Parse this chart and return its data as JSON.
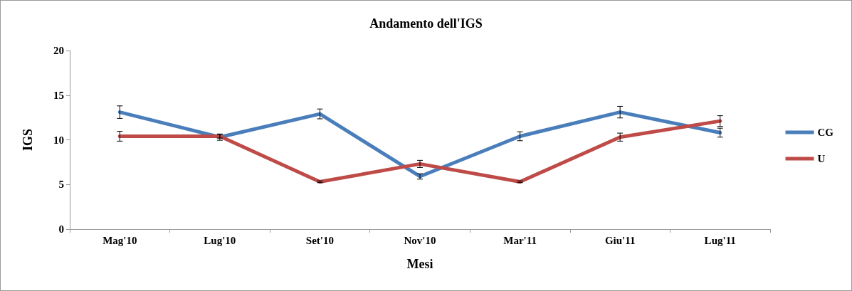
{
  "chart_data": {
    "type": "line",
    "title": "Andamento dell'IGS",
    "xlabel": "Mesi",
    "ylabel": "IGS",
    "categories": [
      "Mag'10",
      "Lug'10",
      "Set'10",
      "Nov'10",
      "Mar'11",
      "Giu'11",
      "Lug'11"
    ],
    "series": [
      {
        "name": "CG",
        "color": "#4a7ebb",
        "values": [
          13.1,
          10.3,
          12.9,
          5.9,
          10.4,
          13.1,
          10.8
        ],
        "errors": [
          0.7,
          0.35,
          0.55,
          0.3,
          0.5,
          0.65,
          0.5
        ]
      },
      {
        "name": "U",
        "color": "#be4b48",
        "values": [
          10.4,
          10.4,
          5.3,
          7.3,
          5.3,
          10.3,
          12.1
        ],
        "errors": [
          0.55,
          0.2,
          0.1,
          0.4,
          0.1,
          0.45,
          0.6
        ]
      }
    ],
    "ylim": [
      0,
      20
    ],
    "yticks": [
      0,
      5,
      10,
      15,
      20
    ],
    "grid": false,
    "legend": "right",
    "marker": "none",
    "line_style": "solid"
  }
}
